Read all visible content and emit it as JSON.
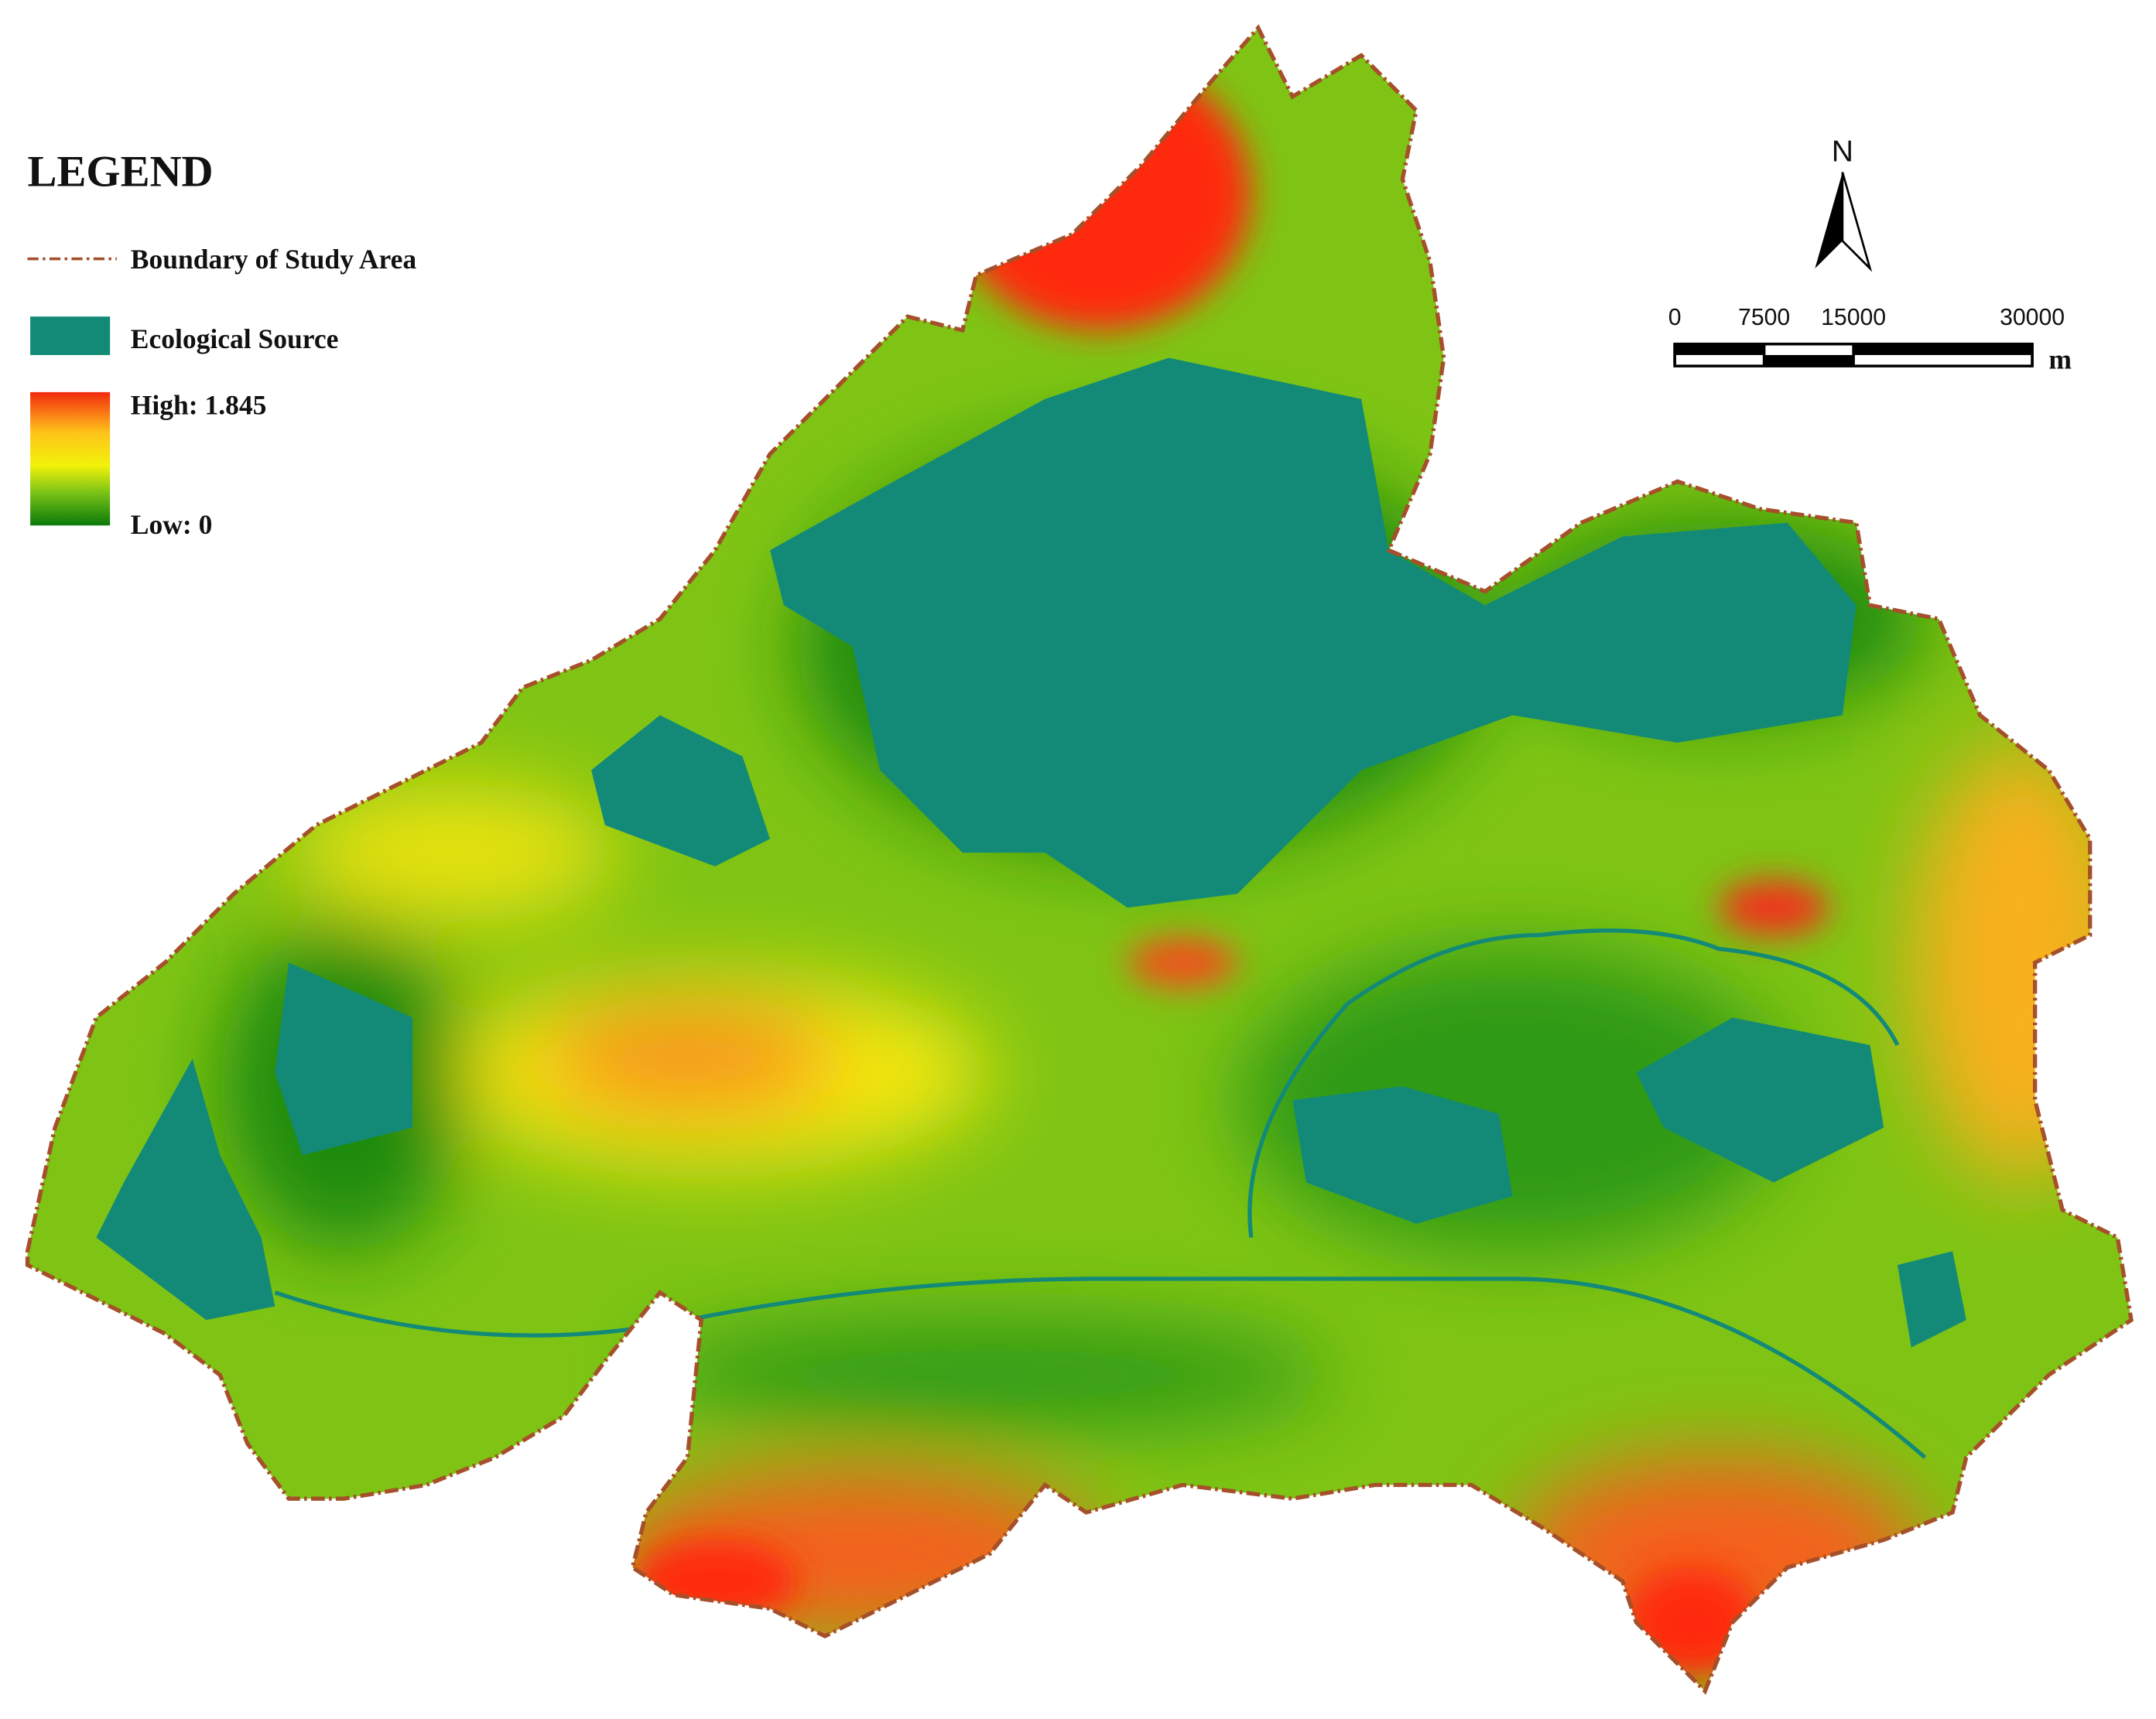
{
  "legend": {
    "title": "LEGEND",
    "boundary": "Boundary of Study Area",
    "source": "Ecological Source",
    "high": "High: 1.845",
    "low": "Low: 0"
  },
  "north_arrow": {
    "label": "N"
  },
  "scale_bar": {
    "ticks": [
      0,
      7500,
      15000,
      30000
    ],
    "unit": "m"
  }
}
